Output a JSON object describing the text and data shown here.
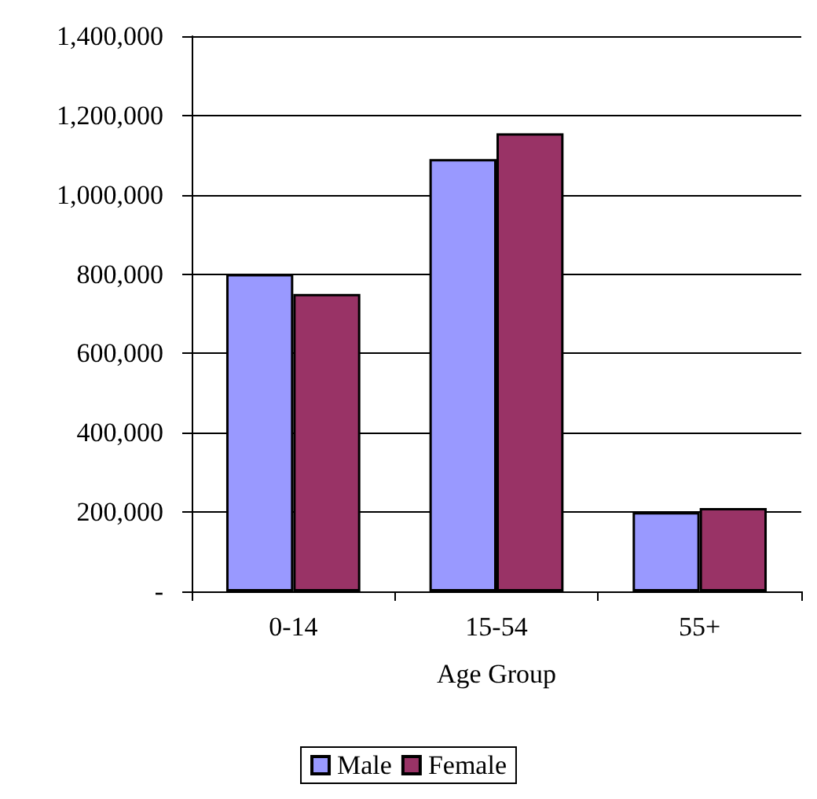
{
  "chart_data": {
    "type": "bar",
    "xlabel": "Age Group",
    "categories": [
      "0-14",
      "15-54",
      "55+"
    ],
    "series": [
      {
        "name": "Male",
        "color": "#9999ff",
        "values": [
          800000,
          1090000,
          200000
        ]
      },
      {
        "name": "Female",
        "color": "#993366",
        "values": [
          750000,
          1155000,
          210000
        ]
      }
    ],
    "ylim": [
      0,
      1400000
    ],
    "yticks": [
      {
        "value": 0,
        "label": "-"
      },
      {
        "value": 200000,
        "label": "200,000"
      },
      {
        "value": 400000,
        "label": "400,000"
      },
      {
        "value": 600000,
        "label": "600,000"
      },
      {
        "value": 800000,
        "label": "800,000"
      },
      {
        "value": 1000000,
        "label": "1,000,000"
      },
      {
        "value": 1200000,
        "label": "1,200,000"
      },
      {
        "value": 1400000,
        "label": "1,400,000"
      }
    ],
    "grid": "y",
    "legend": "bottom"
  }
}
